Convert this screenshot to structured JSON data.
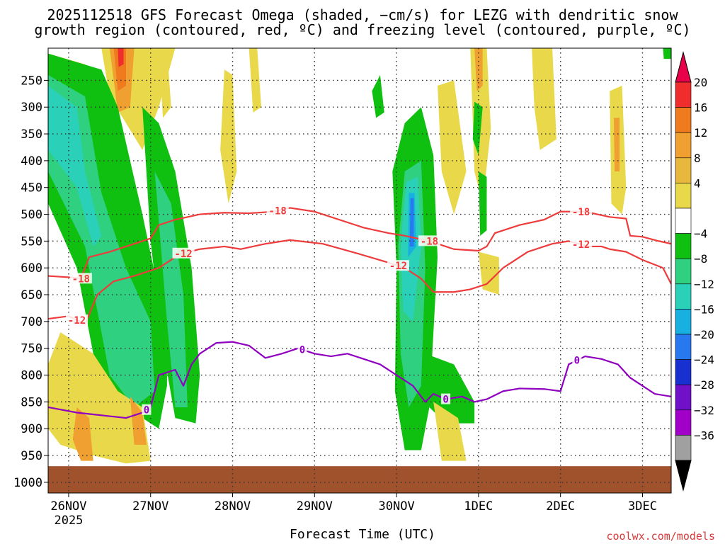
{
  "chart_data": {
    "type": "heatmap",
    "title": "2025112518 GFS Forecast Omega (shaded, −cm/s) for LEZG with dendritic snow",
    "subtitle": "growth region (contoured, red, ºC) and freezing level (contoured, purple, ºC)",
    "xlabel": "Forecast Time (UTC)",
    "ylabel": "",
    "x_ticks": [
      "26NOV",
      "27NOV",
      "28NOV",
      "29NOV",
      "30NOV",
      "1DEC",
      "2DEC",
      "3DEC"
    ],
    "x_sublabel": "2025",
    "x_range_days": [
      -0.25,
      7.35
    ],
    "y_ticks": [
      250,
      300,
      350,
      400,
      450,
      500,
      550,
      600,
      650,
      700,
      750,
      800,
      850,
      900,
      950,
      1000
    ],
    "y_range": [
      190,
      1020
    ],
    "colorbar": {
      "labels": [
        "20",
        "16",
        "12",
        "8",
        "4",
        "−4",
        "−8",
        "−12",
        "−16",
        "−20",
        "−24",
        "−28",
        "−32",
        "−36"
      ],
      "colors": [
        "#e8004a",
        "#f02d2d",
        "#f07a1e",
        "#f0a030",
        "#e8b83c",
        "#e8d84a",
        "#ffffff",
        "#10c010",
        "#2fd080",
        "#2ad0b8",
        "#18b0e0",
        "#2878f0",
        "#1830d0",
        "#7010c8",
        "#a000c8",
        "#a0a0a0",
        "#000000"
      ]
    },
    "contours": [
      {
        "name": "-18",
        "color": "#ee3b3b",
        "labels_at_days": [
          0.15,
          2.55,
          4.4,
          6.25
        ],
        "points": [
          [
            -0.25,
            615
          ],
          [
            0.05,
            618
          ],
          [
            0.15,
            620
          ],
          [
            0.25,
            580
          ],
          [
            0.5,
            570
          ],
          [
            0.8,
            555
          ],
          [
            1.0,
            545
          ],
          [
            1.1,
            520
          ],
          [
            1.3,
            510
          ],
          [
            1.6,
            500
          ],
          [
            1.9,
            497
          ],
          [
            2.2,
            498
          ],
          [
            2.5,
            495
          ],
          [
            2.7,
            488
          ],
          [
            3.0,
            495
          ],
          [
            3.3,
            510
          ],
          [
            3.6,
            525
          ],
          [
            3.9,
            535
          ],
          [
            4.1,
            540
          ],
          [
            4.4,
            550
          ],
          [
            4.7,
            565
          ],
          [
            5.0,
            568
          ],
          [
            5.1,
            560
          ],
          [
            5.2,
            535
          ],
          [
            5.5,
            520
          ],
          [
            5.8,
            510
          ],
          [
            6.0,
            495
          ],
          [
            6.3,
            495
          ],
          [
            6.6,
            505
          ],
          [
            6.8,
            508
          ],
          [
            6.85,
            540
          ],
          [
            7.0,
            542
          ],
          [
            7.2,
            550
          ],
          [
            7.35,
            555
          ]
        ]
      },
      {
        "name": "-12",
        "color": "#ee3b3b",
        "labels_at_days": [
          0.1,
          1.4,
          4.02,
          6.25
        ],
        "points": [
          [
            -0.25,
            695
          ],
          [
            0.0,
            690
          ],
          [
            0.2,
            705
          ],
          [
            0.35,
            650
          ],
          [
            0.55,
            625
          ],
          [
            0.8,
            615
          ],
          [
            1.1,
            600
          ],
          [
            1.35,
            575
          ],
          [
            1.6,
            565
          ],
          [
            1.9,
            560
          ],
          [
            2.1,
            565
          ],
          [
            2.4,
            555
          ],
          [
            2.7,
            548
          ],
          [
            3.1,
            555
          ],
          [
            3.5,
            572
          ],
          [
            3.9,
            590
          ],
          [
            4.1,
            600
          ],
          [
            4.3,
            620
          ],
          [
            4.45,
            645
          ],
          [
            4.7,
            645
          ],
          [
            4.9,
            640
          ],
          [
            5.1,
            630
          ],
          [
            5.3,
            600
          ],
          [
            5.6,
            570
          ],
          [
            5.9,
            555
          ],
          [
            6.1,
            550
          ],
          [
            6.25,
            556
          ],
          [
            6.35,
            560
          ],
          [
            6.5,
            560
          ],
          [
            6.6,
            565
          ],
          [
            6.8,
            570
          ],
          [
            7.0,
            585
          ],
          [
            7.25,
            600
          ],
          [
            7.35,
            630
          ]
        ]
      },
      {
        "name": "0",
        "color": "#9000c0",
        "labels_at_days": [
          0.95,
          2.85,
          4.6,
          6.2
        ],
        "points": [
          [
            -0.25,
            860
          ],
          [
            0.1,
            870
          ],
          [
            0.4,
            875
          ],
          [
            0.7,
            880
          ],
          [
            0.9,
            870
          ],
          [
            1.0,
            860
          ],
          [
            1.1,
            800
          ],
          [
            1.3,
            790
          ],
          [
            1.4,
            820
          ],
          [
            1.5,
            780
          ],
          [
            1.6,
            760
          ],
          [
            1.8,
            740
          ],
          [
            2.0,
            738
          ],
          [
            2.2,
            745
          ],
          [
            2.4,
            768
          ],
          [
            2.6,
            760
          ],
          [
            2.8,
            750
          ],
          [
            3.0,
            760
          ],
          [
            3.2,
            765
          ],
          [
            3.4,
            760
          ],
          [
            3.6,
            770
          ],
          [
            3.8,
            780
          ],
          [
            4.0,
            800
          ],
          [
            4.2,
            820
          ],
          [
            4.35,
            850
          ],
          [
            4.45,
            835
          ],
          [
            4.6,
            845
          ],
          [
            4.8,
            840
          ],
          [
            4.95,
            850
          ],
          [
            5.1,
            845
          ],
          [
            5.3,
            830
          ],
          [
            5.5,
            825
          ],
          [
            5.8,
            826
          ],
          [
            6.0,
            830
          ],
          [
            6.1,
            780
          ],
          [
            6.3,
            765
          ],
          [
            6.5,
            770
          ],
          [
            6.7,
            780
          ],
          [
            6.85,
            805
          ],
          [
            7.0,
            820
          ],
          [
            7.15,
            835
          ],
          [
            7.35,
            840
          ]
        ]
      }
    ],
    "ground_level_hpa": 970,
    "grid": true
  },
  "credit": "coolwx.com/models"
}
